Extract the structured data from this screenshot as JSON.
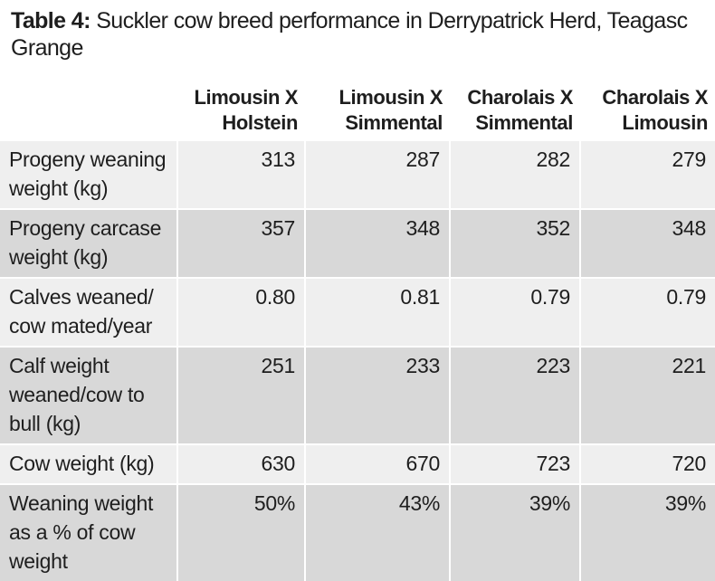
{
  "table": {
    "title_label": "Table 4:",
    "title_text": "Suckler cow breed performance in Derrypatrick Herd, Teagasc Grange",
    "headers": [
      {
        "line1": "Limousin X",
        "line2": "Holstein"
      },
      {
        "line1": "Limousin X",
        "line2": "Simmental"
      },
      {
        "line1": "Charolais X",
        "line2": "Simmental"
      },
      {
        "line1": "Charolais X",
        "line2": "Limousin"
      }
    ],
    "rows": [
      {
        "label": "Progeny weaning weight (kg)",
        "values": [
          "313",
          "287",
          "282",
          "279"
        ]
      },
      {
        "label": "Progeny carcase weight (kg)",
        "values": [
          "357",
          "348",
          "352",
          "348"
        ]
      },
      {
        "label": "Calves weaned/ cow mated/year",
        "values": [
          "0.80",
          "0.81",
          "0.79",
          "0.79"
        ]
      },
      {
        "label": "Calf weight weaned/cow to bull (kg)",
        "values": [
          "251",
          "233",
          "223",
          "221"
        ]
      },
      {
        "label": "Cow weight (kg)",
        "values": [
          "630",
          "670",
          "723",
          "720"
        ]
      },
      {
        "label": "Weaning weight as a % of cow weight",
        "values": [
          "50%",
          "43%",
          "39%",
          "39%"
        ]
      }
    ]
  }
}
